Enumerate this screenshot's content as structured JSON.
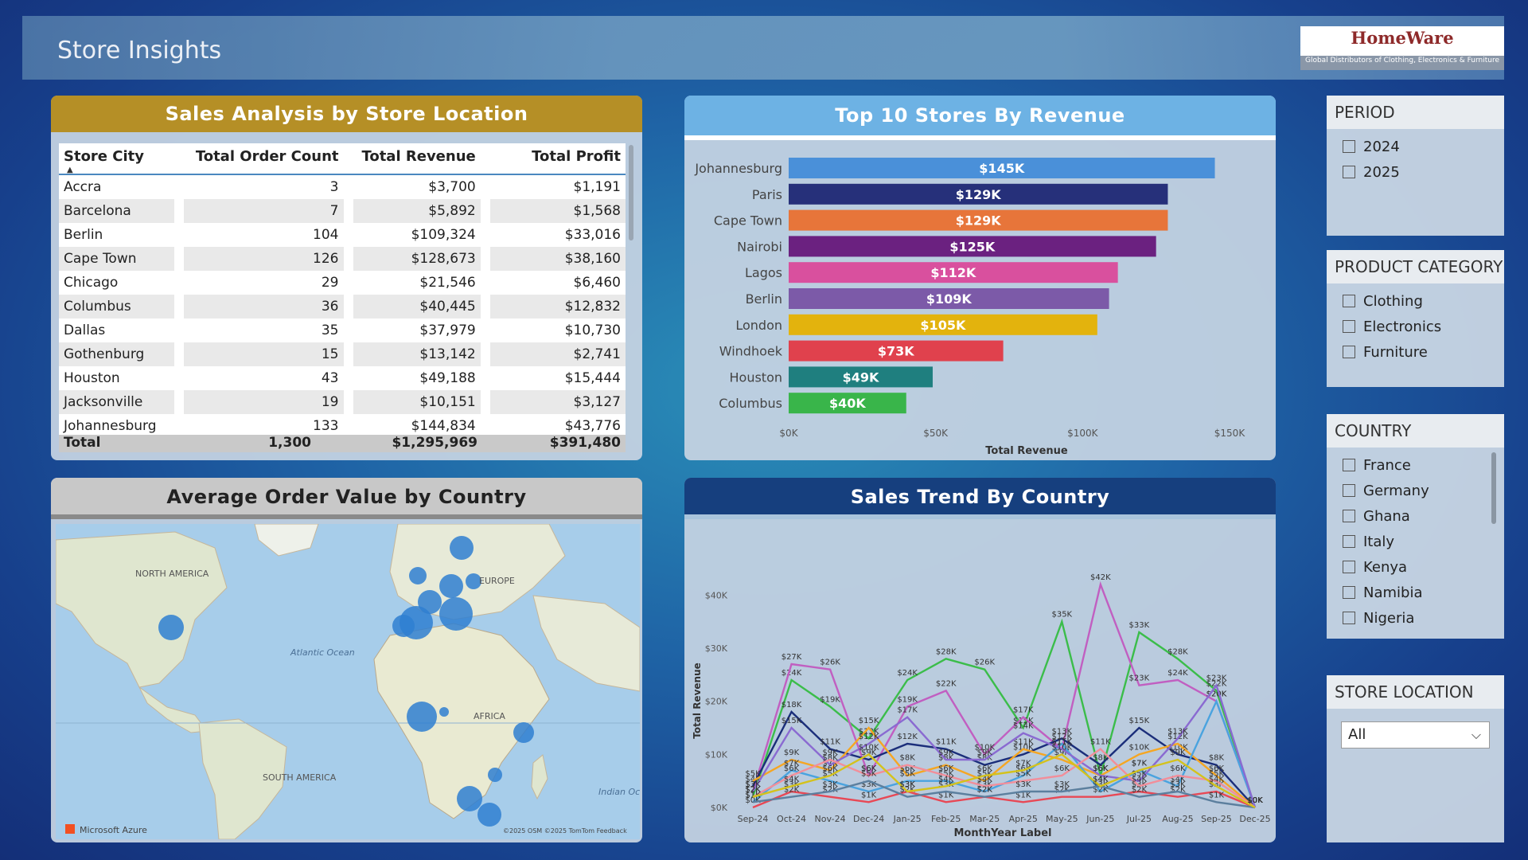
{
  "header": {
    "title": "Store Insights"
  },
  "logo": {
    "brand": "HomeWare",
    "tagline": "Global Distributors of Clothing, Electronics & Furniture"
  },
  "table_panel": {
    "title": "Sales Analysis by Store Location",
    "columns": [
      "Store City",
      "Total Order Count",
      "Total Revenue",
      "Total Profit"
    ],
    "rows": [
      [
        "Accra",
        "3",
        "$3,700",
        "$1,191"
      ],
      [
        "Barcelona",
        "7",
        "$5,892",
        "$1,568"
      ],
      [
        "Berlin",
        "104",
        "$109,324",
        "$33,016"
      ],
      [
        "Cape Town",
        "126",
        "$128,673",
        "$38,160"
      ],
      [
        "Chicago",
        "29",
        "$21,546",
        "$6,460"
      ],
      [
        "Columbus",
        "36",
        "$40,445",
        "$12,832"
      ],
      [
        "Dallas",
        "35",
        "$37,979",
        "$10,730"
      ],
      [
        "Gothenburg",
        "15",
        "$13,142",
        "$2,741"
      ],
      [
        "Houston",
        "43",
        "$49,188",
        "$15,444"
      ],
      [
        "Jacksonville",
        "19",
        "$10,151",
        "$3,127"
      ],
      [
        "Johannesburg",
        "133",
        "$144,834",
        "$43,776"
      ]
    ],
    "total": [
      "Total",
      "1,300",
      "$1,295,969",
      "$391,480"
    ]
  },
  "bar_panel": {
    "title": "Top 10 Stores By Revenue"
  },
  "map_panel": {
    "title": "Average Order Value by Country",
    "labels": {
      "north_america": "NORTH AMERICA",
      "south_america": "SOUTH AMERICA",
      "africa": "AFRICA",
      "europe": "EUROPE",
      "atlantic": "Atlantic Ocean",
      "indian": "Indian Oc"
    },
    "brand": "Microsoft Azure",
    "credits": "©2025 OSM ©2025 TomTom Feedback"
  },
  "line_panel": {
    "title": "Sales Trend By Country"
  },
  "slicers": {
    "period": {
      "title": "PERIOD",
      "items": [
        "2024",
        "2025"
      ]
    },
    "category": {
      "title": "PRODUCT CATEGORY",
      "items": [
        "Clothing",
        "Electronics",
        "Furniture"
      ]
    },
    "country": {
      "title": "COUNTRY",
      "items": [
        "France",
        "Germany",
        "Ghana",
        "Italy",
        "Kenya",
        "Namibia",
        "Nigeria"
      ]
    },
    "store": {
      "title": "STORE LOCATION",
      "value": "All"
    }
  },
  "chart_data": [
    {
      "type": "bar",
      "title": "Top 10 Stores By Revenue",
      "xlabel": "Total Revenue",
      "categories": [
        "Johannesburg",
        "Paris",
        "Cape Town",
        "Nairobi",
        "Lagos",
        "Berlin",
        "London",
        "Windhoek",
        "Houston",
        "Columbus"
      ],
      "values": [
        145,
        129,
        129,
        125,
        112,
        109,
        105,
        73,
        49,
        40
      ],
      "labels": [
        "$145K",
        "$129K",
        "$129K",
        "$125K",
        "$112K",
        "$109K",
        "$105K",
        "$73K",
        "$49K",
        "$40K"
      ],
      "colors": [
        "#4a90d9",
        "#26307a",
        "#e7753a",
        "#6b2180",
        "#d9509e",
        "#7c5aa8",
        "#e3b30d",
        "#e0414d",
        "#1f7f7f",
        "#39b54a"
      ],
      "xticks": [
        "$0K",
        "$50K",
        "$100K",
        "$150K"
      ],
      "xlim": [
        0,
        150
      ]
    },
    {
      "type": "line",
      "title": "Sales Trend By Country",
      "xlabel": "MonthYear Label",
      "ylabel": "Total Revenue",
      "x": [
        "Sep-24",
        "Oct-24",
        "Nov-24",
        "Dec-24",
        "Jan-25",
        "Feb-25",
        "Mar-25",
        "Apr-25",
        "May-25",
        "Jun-25",
        "Jul-25",
        "Aug-25",
        "Sep-25",
        "Dec-25"
      ],
      "yticks": [
        "$0K",
        "$10K",
        "$20K",
        "$30K",
        "$40K"
      ],
      "ylim": [
        0,
        42
      ],
      "series": [
        {
          "color": "#3bbd4a",
          "values": [
            2,
            24,
            19,
            13,
            24,
            28,
            26,
            15,
            35,
            6,
            33,
            28,
            22,
            0
          ]
        },
        {
          "color": "#c15fc1",
          "values": [
            3,
            27,
            26,
            6,
            19,
            22,
            10,
            17,
            11,
            42,
            23,
            24,
            20,
            0
          ]
        },
        {
          "color": "#1b2e7a",
          "values": [
            4,
            18,
            11,
            9,
            12,
            11,
            8,
            10,
            13,
            8,
            15,
            10,
            8,
            0
          ]
        },
        {
          "color": "#f5a623",
          "values": [
            5,
            9,
            7,
            15,
            6,
            8,
            5,
            11,
            9,
            6,
            10,
            12,
            6,
            0
          ]
        },
        {
          "color": "#4aa3df",
          "values": [
            1,
            7,
            5,
            3,
            5,
            5,
            3,
            6,
            12,
            3,
            7,
            4,
            20,
            0
          ]
        },
        {
          "color": "#e84855",
          "values": [
            0,
            3,
            2,
            1,
            3,
            1,
            2,
            1,
            2,
            2,
            3,
            2,
            3,
            0
          ]
        },
        {
          "color": "#8a6ad1",
          "values": [
            3,
            15,
            8,
            12,
            17,
            9,
            9,
            14,
            11,
            6,
            5,
            13,
            23,
            0
          ]
        },
        {
          "color": "#f28e9a",
          "values": [
            2,
            6,
            9,
            6,
            8,
            6,
            4,
            5,
            6,
            11,
            4,
            6,
            5,
            0
          ]
        },
        {
          "color": "#5c7f9e",
          "values": [
            1,
            2,
            3,
            5,
            2,
            3,
            2,
            3,
            3,
            4,
            2,
            3,
            1,
            0
          ]
        },
        {
          "color": "#d4c21c",
          "values": [
            2,
            4,
            6,
            10,
            3,
            4,
            6,
            7,
            10,
            4,
            7,
            9,
            4,
            0
          ]
        }
      ]
    }
  ]
}
